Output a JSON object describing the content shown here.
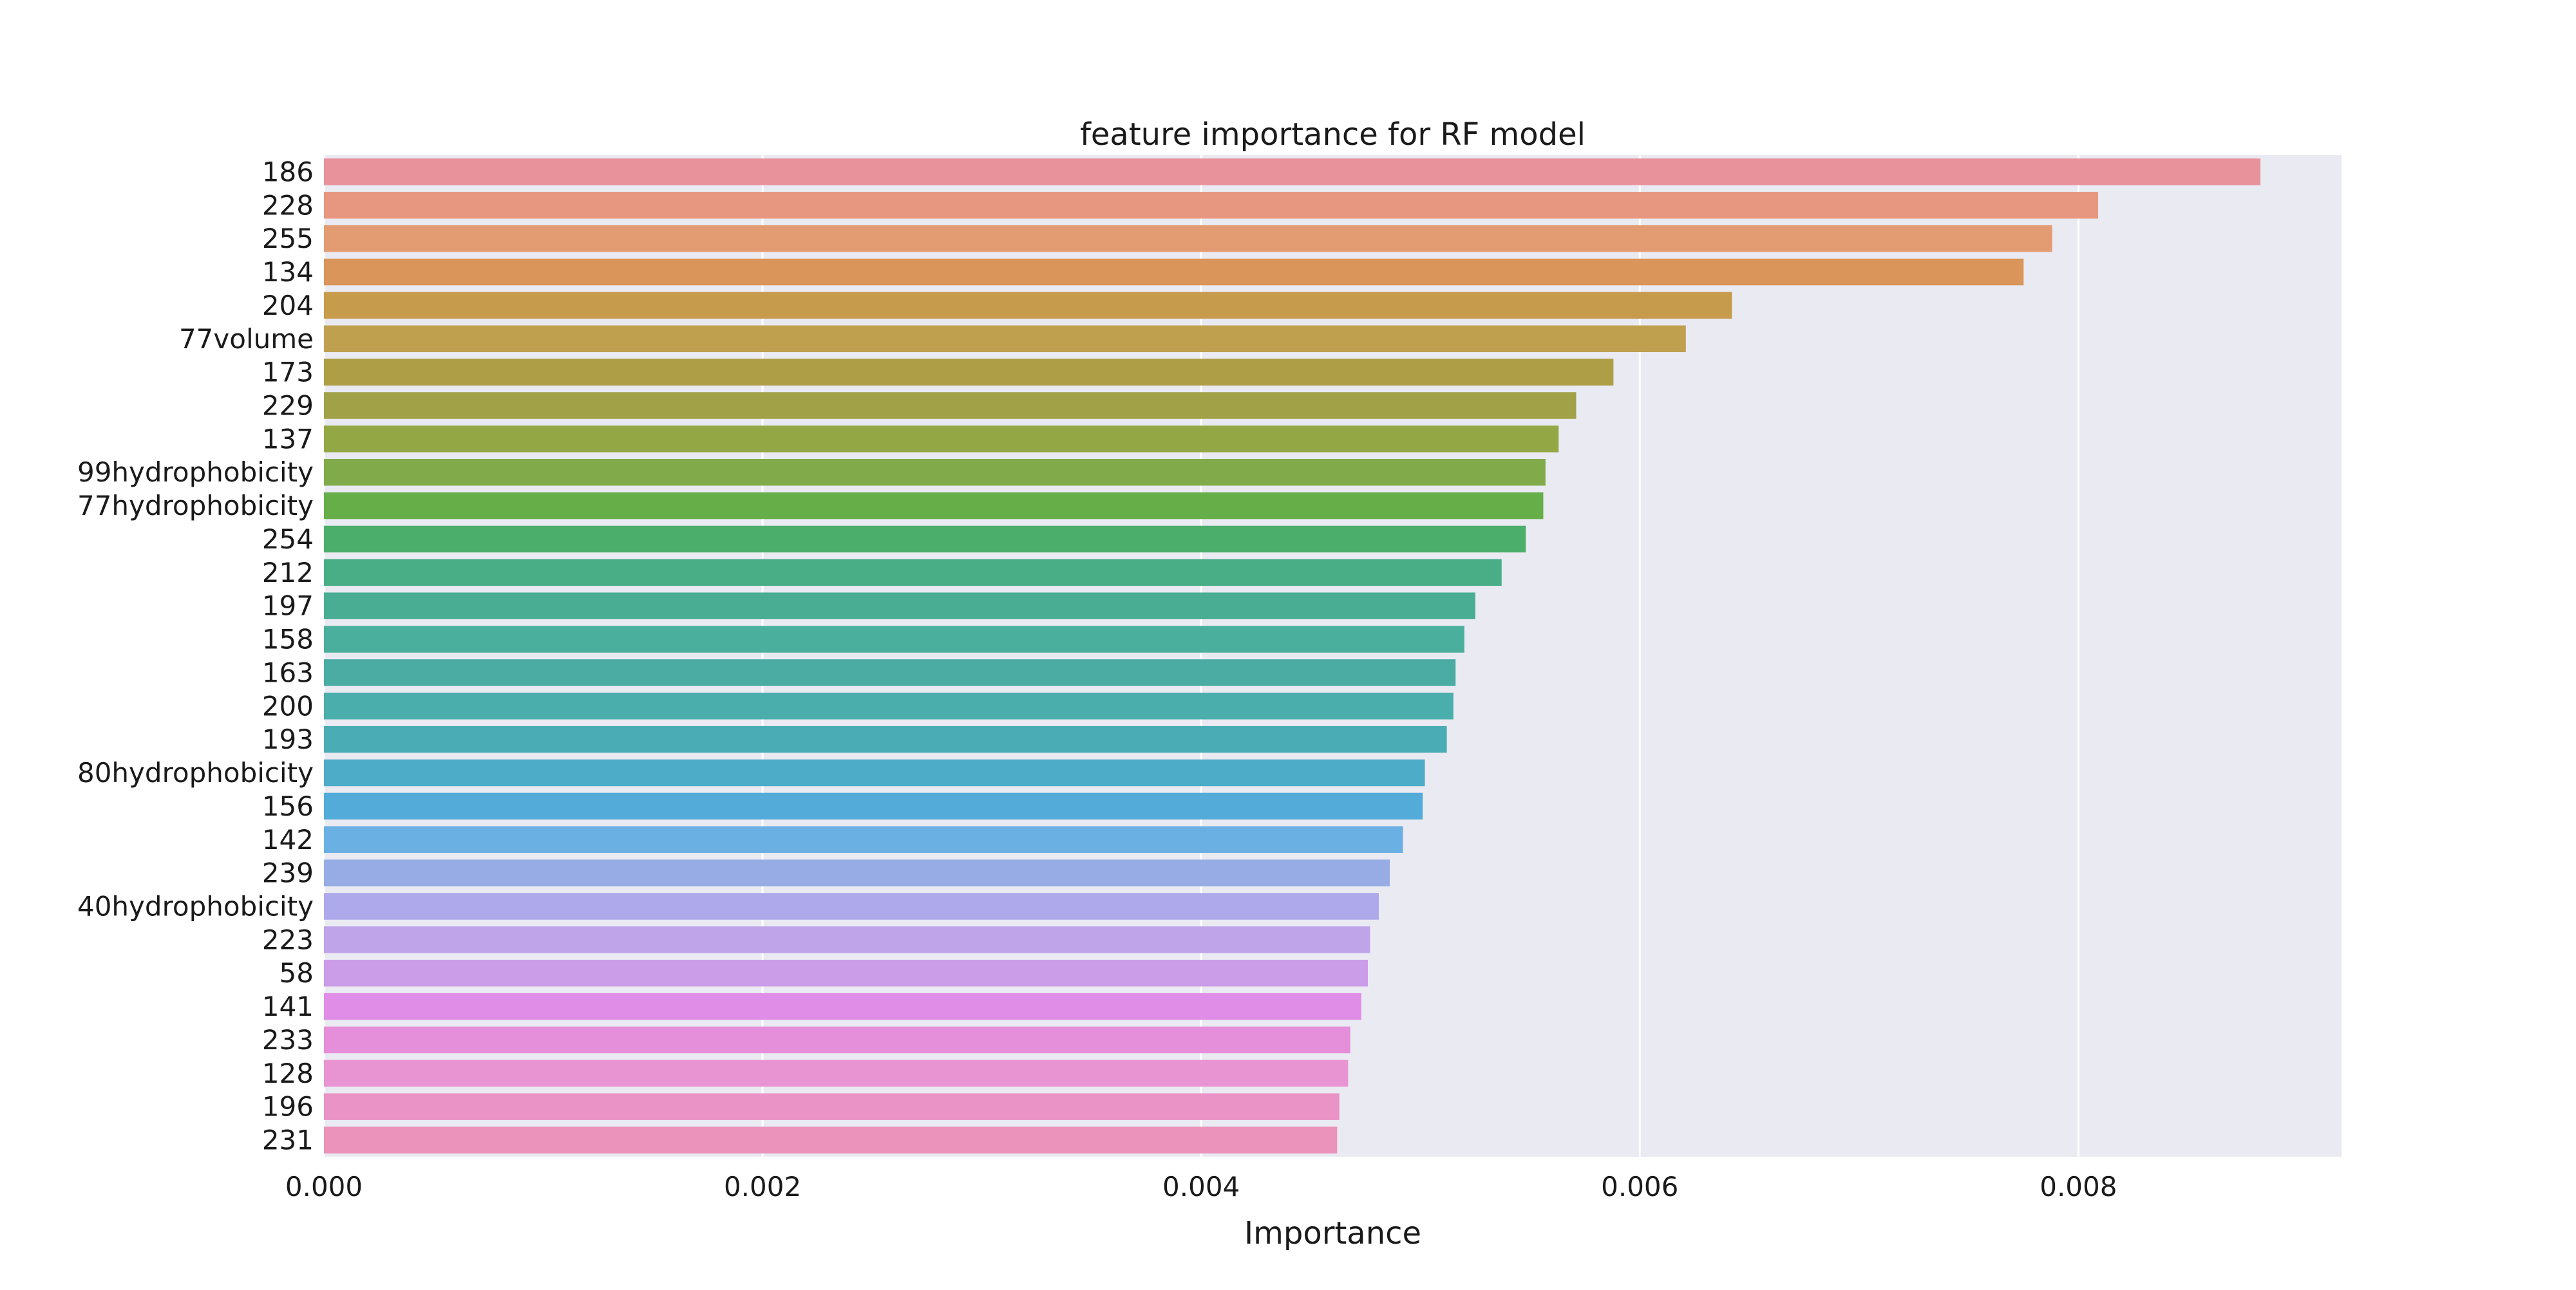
{
  "chart_data": {
    "type": "bar",
    "orientation": "horizontal",
    "title": "feature importance for RF model",
    "xlabel": "Importance",
    "ylabel": "",
    "xlim": [
      0,
      0.0092
    ],
    "xticks": [
      0.0,
      0.002,
      0.004,
      0.006,
      0.008
    ],
    "xtick_labels": [
      "0.000",
      "0.002",
      "0.004",
      "0.006",
      "0.008"
    ],
    "grid": true,
    "legend": "none",
    "style": {
      "plot_background": "#eaeaf2",
      "grid_color": "#ffffff"
    },
    "categories": [
      "186",
      "228",
      "255",
      "134",
      "204",
      "77volume",
      "173",
      "229",
      "137",
      "99hydrophobicity",
      "77hydrophobicity",
      "254",
      "212",
      "197",
      "158",
      "163",
      "200",
      "193",
      "80hydrophobicity",
      "156",
      "142",
      "239",
      "40hydrophobicity",
      "223",
      "58",
      "141",
      "233",
      "128",
      "196",
      "231"
    ],
    "values": [
      0.00883,
      0.00809,
      0.00788,
      0.00775,
      0.00642,
      0.00621,
      0.00588,
      0.00571,
      0.00563,
      0.00557,
      0.00556,
      0.00548,
      0.00537,
      0.00525,
      0.0052,
      0.00516,
      0.00515,
      0.00512,
      0.00502,
      0.00501,
      0.00492,
      0.00486,
      0.00481,
      0.00477,
      0.00476,
      0.00473,
      0.00468,
      0.00467,
      0.00463,
      0.00462
    ],
    "colors": [
      "#e8929c",
      "#e7977f",
      "#e39b72",
      "#d9955a",
      "#c79b4c",
      "#bfa04f",
      "#ae9f46",
      "#a1a148",
      "#93a845",
      "#81ab4b",
      "#66ae48",
      "#4cae6b",
      "#49ae85",
      "#49ad94",
      "#4aaf9c",
      "#4aaca3",
      "#4aaeac",
      "#4aacb4",
      "#4dacc8",
      "#52abd8",
      "#6ab0e3",
      "#97ace5",
      "#aea9ea",
      "#bfa4e9",
      "#cb9ce8",
      "#df8de6",
      "#e58fdb",
      "#e994d2",
      "#ea93c6",
      "#eb93bb"
    ]
  }
}
